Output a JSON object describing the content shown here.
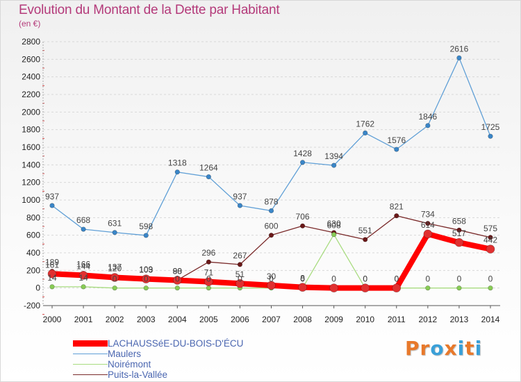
{
  "page": {
    "title": "Evolution du Montant de la Dette par Habitant",
    "subtitle": "(en €)",
    "logo_text": "Proxiti",
    "logo_colors": [
      "#e8792b",
      "#e8792b",
      "#3aa0d8",
      "#e8792b",
      "#3aa0d8",
      "#e8792b",
      "#3aa0d8"
    ]
  },
  "colors": {
    "title": "#b43a7a",
    "grid": "#d8d8d8",
    "axis": "#555555",
    "legend_text": "#4a66b0"
  },
  "chart_data": {
    "type": "line",
    "x": [
      "2000",
      "2001",
      "2002",
      "2003",
      "2004",
      "2005",
      "2006",
      "2007",
      "2008",
      "2009",
      "2010",
      "2011",
      "2012",
      "2013",
      "2014"
    ],
    "ylim": [
      -200,
      2800
    ],
    "yticks": [
      -200,
      0,
      200,
      400,
      600,
      800,
      1000,
      1200,
      1400,
      1600,
      1800,
      2000,
      2200,
      2400,
      2600,
      2800
    ],
    "grid": "horizontal dashed",
    "legend_position": "bottom-left",
    "series": [
      {
        "name": "LACHAUSSéE-DU-BOIS-D'ÉCU",
        "color": "#ff0000",
        "marker": "#e03030",
        "width": 8,
        "values": [
          161,
          144,
          120,
          103,
          88,
          71,
          51,
          30,
          8,
          0,
          0,
          0,
          614,
          517,
          442
        ],
        "labels": [
          "161",
          "144",
          "120",
          "103",
          "88",
          "71",
          "51",
          "30",
          "8",
          "0",
          "0",
          "0",
          "614",
          "517",
          "442"
        ]
      },
      {
        "name": "Maulers",
        "color": "#5f9fd6",
        "marker": "#3a86c8",
        "width": 1.3,
        "values": [
          937,
          668,
          631,
          598,
          1318,
          1264,
          937,
          878,
          1428,
          1394,
          1762,
          1576,
          1846,
          2616,
          1725
        ],
        "labels": [
          "937",
          "668",
          "631",
          "598",
          "1318",
          "1264",
          "937",
          "878",
          "1428",
          "1394",
          "1762",
          "1576",
          "1846",
          "2616",
          "1725"
        ]
      },
      {
        "name": "Noirémont",
        "color": "#a8dc80",
        "marker": "#88cc55",
        "width": 1.3,
        "values": [
          14,
          14,
          0,
          0,
          0,
          0,
          0,
          0,
          0,
          608,
          0,
          0,
          0,
          0,
          0
        ],
        "labels": [
          "14",
          "14",
          "0",
          "0",
          "0",
          "0",
          "0",
          "0",
          "0",
          "608",
          "0",
          "0",
          "0",
          "0",
          "0"
        ]
      },
      {
        "name": "Puits-la-Vallée",
        "color": "#7a2a2a",
        "marker": "#6a1818",
        "width": 1.3,
        "values": [
          189,
          166,
          137,
          109,
          90,
          296,
          267,
          600,
          706,
          630,
          551,
          821,
          734,
          658,
          575
        ],
        "labels": [
          "189",
          "166",
          "137",
          "109",
          "90",
          "296",
          "267",
          "600",
          "706",
          "630",
          "551",
          "821",
          "734",
          "658",
          "575"
        ]
      }
    ]
  }
}
